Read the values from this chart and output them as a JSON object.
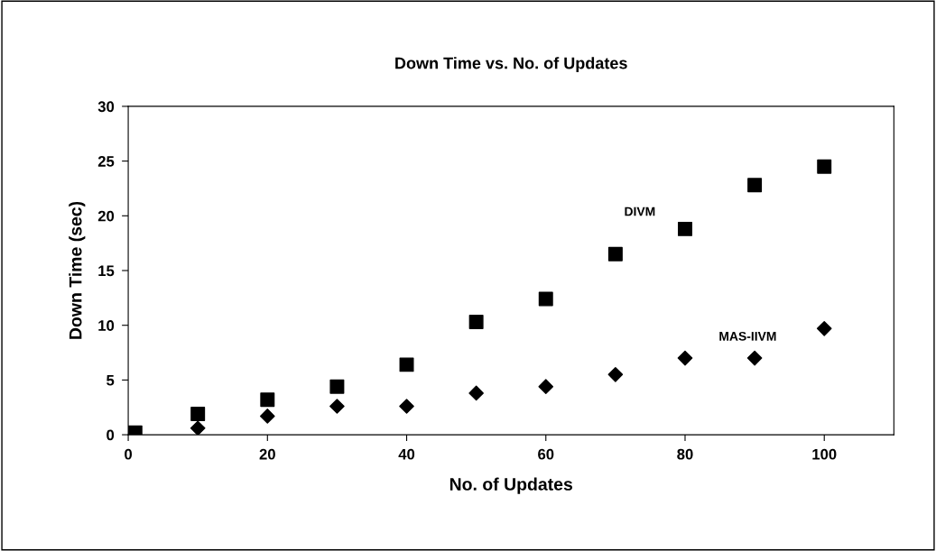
{
  "chart_data": {
    "type": "scatter",
    "title": "Down Time vs. No. of Updates",
    "xlabel": "No. of Updates",
    "ylabel": "Down Time (sec)",
    "x": [
      1,
      10,
      20,
      30,
      40,
      50,
      60,
      70,
      80,
      90,
      100
    ],
    "series": [
      {
        "name": "DIVM",
        "color": "#000000",
        "marker": "square",
        "values": [
          0.2,
          1.9,
          3.2,
          4.4,
          6.4,
          10.3,
          12.4,
          16.5,
          18.8,
          22.8,
          24.5
        ]
      },
      {
        "name": "MAS-IIVM",
        "color": "#000000",
        "marker": "diamond",
        "values": [
          null,
          0.6,
          1.7,
          2.6,
          2.6,
          3.8,
          4.4,
          5.5,
          7.0,
          7.0,
          9.7
        ]
      }
    ],
    "xlim": [
      0,
      110
    ],
    "xticks": [
      0,
      20,
      40,
      60,
      80,
      100
    ],
    "ylim": [
      0,
      30
    ],
    "yticks": [
      0,
      5,
      10,
      15,
      20,
      25,
      30
    ],
    "grid": false,
    "legend": false
  }
}
